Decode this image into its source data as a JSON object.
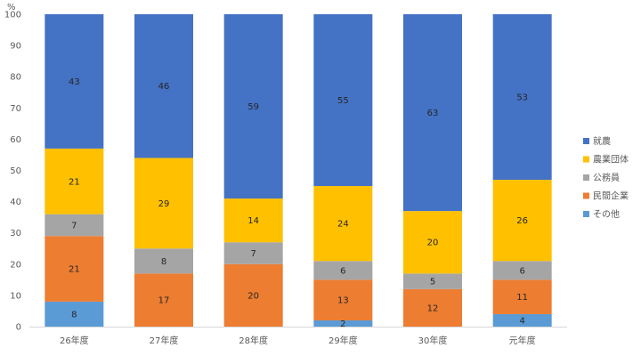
{
  "chart_data": {
    "type": "bar",
    "stacked": true,
    "unit_label": "%",
    "ylim": [
      0,
      100
    ],
    "yticks": [
      0,
      10,
      20,
      30,
      40,
      50,
      60,
      70,
      80,
      90,
      100
    ],
    "categories": [
      "26年度",
      "27年度",
      "28年度",
      "29年度",
      "30年度",
      "元年度"
    ],
    "series": [
      {
        "name": "その他",
        "color": "#5B9BD5",
        "values": [
          8,
          0,
          0,
          2,
          0,
          4
        ]
      },
      {
        "name": "民間企業",
        "color": "#ED7D31",
        "values": [
          21,
          17,
          20,
          13,
          12,
          11
        ]
      },
      {
        "name": "公務員",
        "color": "#A5A5A5",
        "values": [
          7,
          8,
          7,
          6,
          5,
          6
        ]
      },
      {
        "name": "農業団体",
        "color": "#FFC000",
        "values": [
          21,
          29,
          14,
          24,
          20,
          26
        ]
      },
      {
        "name": "就農",
        "color": "#4472C4",
        "values": [
          43,
          46,
          59,
          55,
          63,
          53
        ]
      }
    ],
    "legend_position": "right",
    "grid": false
  }
}
